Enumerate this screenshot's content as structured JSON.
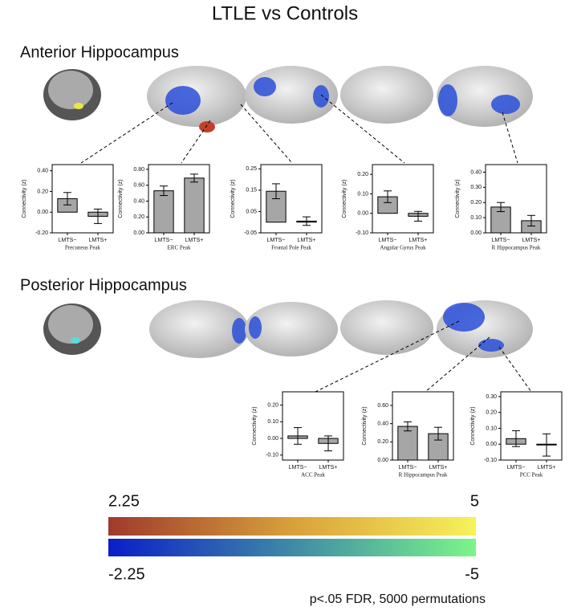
{
  "title": "LTLE vs Controls",
  "sections": [
    "Anterior Hippocampus",
    "Posterior Hippocampus"
  ],
  "colorbar": {
    "positive": {
      "min_label": "2.25",
      "max_label": "5"
    },
    "negative": {
      "min_label": "-2.25",
      "max_label": "-5"
    }
  },
  "footnote": "p<.05 FDR, 5000 permutations",
  "chart_data": [
    {
      "type": "bar",
      "xlabel": "Precuneus Peak",
      "ylabel": "Connectivity (z)",
      "categories": [
        "LMTS−",
        "LMTS+"
      ],
      "values": [
        0.13,
        -0.04
      ],
      "errors": [
        0.06,
        0.07
      ],
      "color": "#a6a6a6",
      "ylim": [
        -0.2,
        0.46
      ],
      "yticks": [
        {
          "value": -0.2,
          "label": "-0.20"
        },
        {
          "value": 0,
          "label": "0.00"
        },
        {
          "value": 0.2,
          "label": "0.20"
        },
        {
          "value": 0.4,
          "label": "0.40"
        }
      ]
    },
    {
      "type": "bar",
      "xlabel": "ERC Peak",
      "ylabel": "Connectivity (z)",
      "categories": [
        "LMTS−",
        "LMTS+"
      ],
      "values": [
        0.53,
        0.69
      ],
      "errors": [
        0.06,
        0.05
      ],
      "color": "#a6a6a6",
      "ylim": [
        0,
        0.86
      ],
      "yticks": [
        {
          "value": 0,
          "label": "0.00"
        },
        {
          "value": 0.2,
          "label": "0.20"
        },
        {
          "value": 0.4,
          "label": "0.40"
        },
        {
          "value": 0.6,
          "label": "0.60"
        },
        {
          "value": 0.8,
          "label": "0.80"
        }
      ]
    },
    {
      "type": "bar",
      "xlabel": "Frontal Pole Peak",
      "ylabel": "Connectivity (z)",
      "categories": [
        "LMTS−",
        "LMTS+"
      ],
      "values": [
        0.145,
        0.005
      ],
      "errors": [
        0.035,
        0.02
      ],
      "color": "#a6a6a6",
      "ylim": [
        -0.05,
        0.27
      ],
      "yticks": [
        {
          "value": -0.05,
          "label": "-0.05"
        },
        {
          "value": 0.05,
          "label": "0.05"
        },
        {
          "value": 0.15,
          "label": "0.15"
        },
        {
          "value": 0.25,
          "label": "0.25"
        }
      ]
    },
    {
      "type": "bar",
      "xlabel": "Angular Gyrus Peak",
      "ylabel": "Connectivity (z)",
      "categories": [
        "LMTS−",
        "LMTS+"
      ],
      "values": [
        0.085,
        -0.015
      ],
      "errors": [
        0.03,
        0.025
      ],
      "color": "#a6a6a6",
      "ylim": [
        -0.1,
        0.25
      ],
      "yticks": [
        {
          "value": -0.1,
          "label": "-0.10"
        },
        {
          "value": 0,
          "label": "0.00"
        },
        {
          "value": 0.1,
          "label": "0.10"
        },
        {
          "value": 0.2,
          "label": "0.20"
        }
      ]
    },
    {
      "type": "bar",
      "xlabel": "R Hippocampus Peak",
      "ylabel": "Connectivity (z)",
      "categories": [
        "LMTS−",
        "LMTS+"
      ],
      "values": [
        0.17,
        0.08
      ],
      "errors": [
        0.03,
        0.035
      ],
      "color": "#a6a6a6",
      "ylim": [
        0,
        0.45
      ],
      "yticks": [
        {
          "value": 0,
          "label": "0.00"
        },
        {
          "value": 0.1,
          "label": "0.10"
        },
        {
          "value": 0.2,
          "label": "0.20"
        },
        {
          "value": 0.3,
          "label": "0.30"
        },
        {
          "value": 0.4,
          "label": "0.40"
        }
      ]
    },
    {
      "type": "bar",
      "xlabel": "ACC Peak",
      "ylabel": "Connectivity (z)",
      "categories": [
        "LMTS−",
        "LMTS+"
      ],
      "values": [
        0.015,
        -0.03
      ],
      "errors": [
        0.05,
        0.045
      ],
      "color": "#a6a6a6",
      "ylim": [
        -0.13,
        0.28
      ],
      "yticks": [
        {
          "value": -0.1,
          "label": "-0.10"
        },
        {
          "value": 0,
          "label": "0.00"
        },
        {
          "value": 0.1,
          "label": "0.10"
        },
        {
          "value": 0.2,
          "label": "0.20"
        }
      ]
    },
    {
      "type": "bar",
      "xlabel": "R Hippocampus Peak",
      "ylabel": "Connectivity (z)",
      "categories": [
        "LMTS−",
        "LMTS+"
      ],
      "values": [
        0.37,
        0.29
      ],
      "errors": [
        0.05,
        0.07
      ],
      "color": "#a6a6a6",
      "ylim": [
        0,
        0.75
      ],
      "yticks": [
        {
          "value": 0,
          "label": "0.00"
        },
        {
          "value": 0.2,
          "label": "0.20"
        },
        {
          "value": 0.4,
          "label": "0.40"
        },
        {
          "value": 0.6,
          "label": "0.60"
        }
      ]
    },
    {
      "type": "bar",
      "xlabel": "PCC Peak",
      "ylabel": "Connectivity (z)",
      "categories": [
        "LMTS−",
        "LMTS+"
      ],
      "values": [
        0.035,
        -0.005
      ],
      "errors": [
        0.05,
        0.07
      ],
      "color": "#a6a6a6",
      "ylim": [
        -0.1,
        0.33
      ],
      "yticks": [
        {
          "value": -0.1,
          "label": "-0.10"
        },
        {
          "value": 0,
          "label": "0.00"
        },
        {
          "value": 0.1,
          "label": "0.10"
        },
        {
          "value": 0.2,
          "label": "0.20"
        },
        {
          "value": 0.3,
          "label": "0.30"
        }
      ]
    }
  ]
}
